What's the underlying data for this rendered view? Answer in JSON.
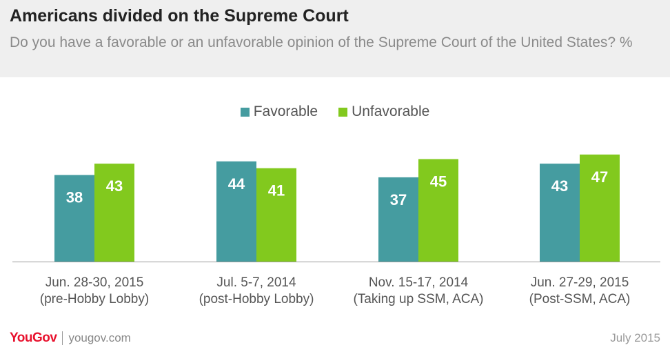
{
  "colors": {
    "favorable": "#459ca0",
    "unfavorable": "#82c91e",
    "header_bg": "#efefef"
  },
  "header": {
    "title": "Americans divided on the Supreme Court",
    "subtitle": "Do you have a favorable or an unfavorable opinion of the Supreme Court of the United States? %"
  },
  "legend": [
    {
      "label": "Favorable",
      "color": "#459ca0"
    },
    {
      "label": "Unfavorable",
      "color": "#82c91e"
    }
  ],
  "chart_data": {
    "type": "bar",
    "categories": [
      [
        "Jun. 28-30, 2015",
        "(pre-Hobby Lobby)"
      ],
      [
        "Jul. 5-7, 2014",
        "(post-Hobby Lobby)"
      ],
      [
        "Nov. 15-17, 2014",
        "(Taking up SSM, ACA)"
      ],
      [
        "Jun. 27-29, 2015",
        "(Post-SSM, ACA)"
      ]
    ],
    "series": [
      {
        "name": "Favorable",
        "values": [
          38,
          44,
          37,
          43
        ],
        "color": "#459ca0"
      },
      {
        "name": "Unfavorable",
        "values": [
          43,
          41,
          45,
          47
        ],
        "color": "#82c91e"
      }
    ],
    "ylim": [
      0,
      50
    ],
    "grid": false,
    "data_labels": true,
    "legend_position": "top-center"
  },
  "footer": {
    "logo": "YouGov",
    "site": "yougov.com",
    "date": "July 2015"
  }
}
